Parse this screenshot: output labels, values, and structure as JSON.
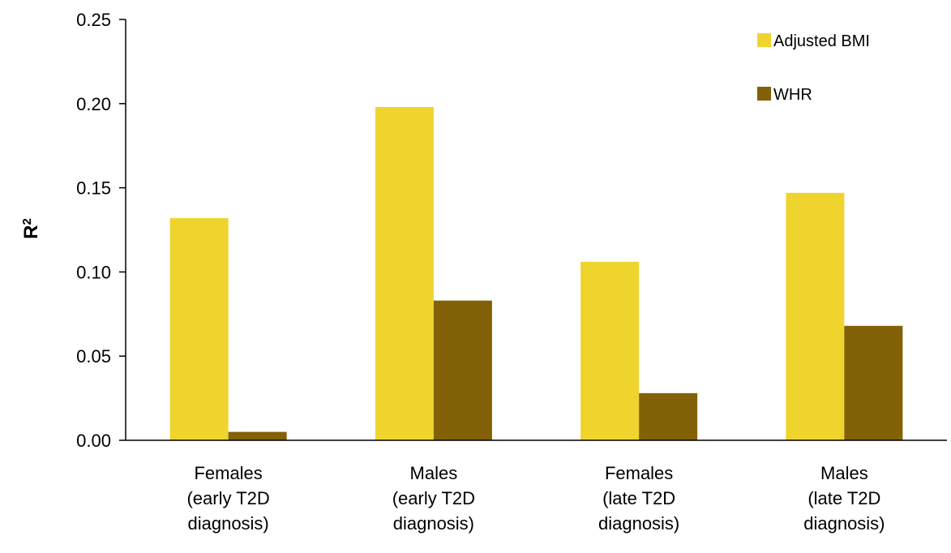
{
  "chart_data": {
    "type": "bar",
    "title": "",
    "xlabel": "",
    "ylabel": "R",
    "ylabel_superscript": "2",
    "categories": [
      [
        "Females",
        "(early T2D",
        "diagnosis)"
      ],
      [
        "Males",
        "(early T2D",
        "diagnosis)"
      ],
      [
        "Females",
        "(late T2D",
        "diagnosis)"
      ],
      [
        "Males",
        "(late T2D",
        "diagnosis)"
      ]
    ],
    "series": [
      {
        "name": "Adjusted BMI",
        "color": "#F0D42E",
        "values": [
          0.132,
          0.198,
          0.106,
          0.147
        ]
      },
      {
        "name": "WHR",
        "color": "#836106",
        "values": [
          0.005,
          0.083,
          0.028,
          0.068
        ]
      }
    ],
    "ylim": [
      0,
      0.25
    ],
    "yticks": [
      "0.00",
      "0.05",
      "0.10",
      "0.15",
      "0.20",
      "0.25"
    ],
    "grid": false,
    "legend_position": "top-right"
  }
}
